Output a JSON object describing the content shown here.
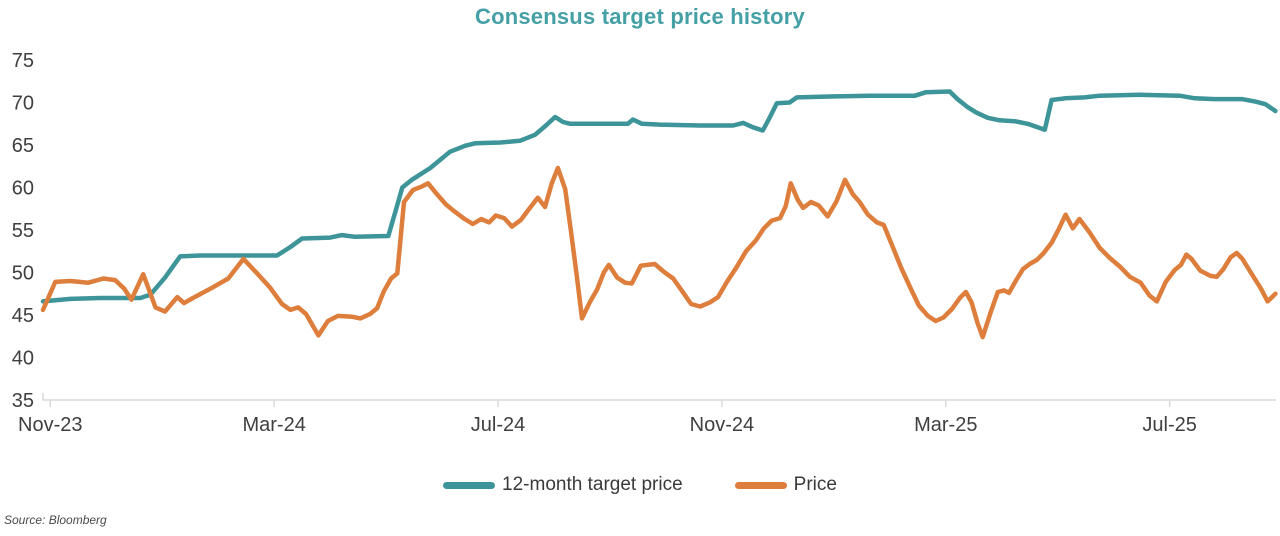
{
  "title": "Consensus target price history",
  "source": "Source: Bloomberg",
  "colors": {
    "title": "#45a0a6",
    "target": "#3d9499",
    "price": "#dd7e3c",
    "axis_text": "#3f3f3f",
    "axis_line": "#d9d9d9"
  },
  "chart_data": {
    "type": "line",
    "title": "Consensus target price history",
    "xlabel": "",
    "ylabel": "",
    "x_unit": "months since Nov-2023",
    "x_range": [
      -0.13,
      21.9
    ],
    "y_range": [
      35,
      75
    ],
    "y_tick_step": 5,
    "grid": false,
    "legend_position": "bottom",
    "x_ticks": [
      {
        "label": "Nov-23",
        "m": 0
      },
      {
        "label": "Mar-24",
        "m": 4
      },
      {
        "label": "Jul-24",
        "m": 8
      },
      {
        "label": "Nov-24",
        "m": 12
      },
      {
        "label": "Mar-25",
        "m": 16
      },
      {
        "label": "Jul-25",
        "m": 20
      }
    ],
    "series": [
      {
        "name": "12-month target price",
        "color": "#3d9499",
        "points": [
          [
            -0.13,
            46.6
          ],
          [
            0.36,
            46.9
          ],
          [
            0.89,
            47.0
          ],
          [
            1.61,
            47.0
          ],
          [
            1.79,
            47.4
          ],
          [
            2.05,
            49.4
          ],
          [
            2.32,
            51.9
          ],
          [
            2.68,
            52.0
          ],
          [
            4.05,
            52.0
          ],
          [
            4.29,
            53.0
          ],
          [
            4.5,
            54.0
          ],
          [
            5.0,
            54.1
          ],
          [
            5.21,
            54.4
          ],
          [
            5.45,
            54.2
          ],
          [
            6.04,
            54.3
          ],
          [
            6.16,
            57.0
          ],
          [
            6.29,
            60.0
          ],
          [
            6.46,
            60.9
          ],
          [
            6.79,
            62.3
          ],
          [
            7.14,
            64.2
          ],
          [
            7.41,
            64.9
          ],
          [
            7.59,
            65.2
          ],
          [
            8.04,
            65.3
          ],
          [
            8.39,
            65.5
          ],
          [
            8.66,
            66.2
          ],
          [
            8.84,
            67.2
          ],
          [
            9.02,
            68.3
          ],
          [
            9.16,
            67.7
          ],
          [
            9.29,
            67.5
          ],
          [
            9.82,
            67.5
          ],
          [
            10.32,
            67.5
          ],
          [
            10.41,
            68.0
          ],
          [
            10.57,
            67.5
          ],
          [
            10.89,
            67.4
          ],
          [
            11.61,
            67.3
          ],
          [
            12.2,
            67.3
          ],
          [
            12.38,
            67.6
          ],
          [
            12.55,
            67.1
          ],
          [
            12.73,
            66.7
          ],
          [
            12.86,
            68.3
          ],
          [
            12.98,
            69.9
          ],
          [
            13.21,
            70.0
          ],
          [
            13.34,
            70.6
          ],
          [
            13.93,
            70.7
          ],
          [
            14.64,
            70.8
          ],
          [
            15.45,
            70.8
          ],
          [
            15.64,
            71.2
          ],
          [
            16.07,
            71.3
          ],
          [
            16.21,
            70.4
          ],
          [
            16.38,
            69.5
          ],
          [
            16.55,
            68.8
          ],
          [
            16.75,
            68.2
          ],
          [
            16.96,
            67.9
          ],
          [
            17.23,
            67.8
          ],
          [
            17.46,
            67.5
          ],
          [
            17.64,
            67.1
          ],
          [
            17.77,
            66.8
          ],
          [
            17.89,
            70.3
          ],
          [
            18.13,
            70.5
          ],
          [
            18.48,
            70.6
          ],
          [
            18.75,
            70.8
          ],
          [
            19.46,
            70.9
          ],
          [
            20.18,
            70.8
          ],
          [
            20.45,
            70.5
          ],
          [
            20.8,
            70.4
          ],
          [
            21.29,
            70.4
          ],
          [
            21.54,
            70.1
          ],
          [
            21.71,
            69.8
          ],
          [
            21.89,
            69.0
          ]
        ]
      },
      {
        "name": "Price",
        "color": "#dd7e3c",
        "points": [
          [
            -0.13,
            45.6
          ],
          [
            0.09,
            48.9
          ],
          [
            0.36,
            49.0
          ],
          [
            0.68,
            48.8
          ],
          [
            0.95,
            49.3
          ],
          [
            1.16,
            49.1
          ],
          [
            1.32,
            48.1
          ],
          [
            1.45,
            46.8
          ],
          [
            1.66,
            49.8
          ],
          [
            1.88,
            45.9
          ],
          [
            2.05,
            45.4
          ],
          [
            2.27,
            47.1
          ],
          [
            2.39,
            46.4
          ],
          [
            2.55,
            47.0
          ],
          [
            2.89,
            48.2
          ],
          [
            3.18,
            49.3
          ],
          [
            3.45,
            51.6
          ],
          [
            3.71,
            49.8
          ],
          [
            3.93,
            48.2
          ],
          [
            4.14,
            46.3
          ],
          [
            4.29,
            45.6
          ],
          [
            4.43,
            45.9
          ],
          [
            4.57,
            45.1
          ],
          [
            4.79,
            42.6
          ],
          [
            4.96,
            44.3
          ],
          [
            5.14,
            44.9
          ],
          [
            5.39,
            44.8
          ],
          [
            5.54,
            44.6
          ],
          [
            5.71,
            45.1
          ],
          [
            5.84,
            45.8
          ],
          [
            5.96,
            47.8
          ],
          [
            6.09,
            49.3
          ],
          [
            6.2,
            49.9
          ],
          [
            6.32,
            58.3
          ],
          [
            6.48,
            59.7
          ],
          [
            6.63,
            60.1
          ],
          [
            6.75,
            60.5
          ],
          [
            6.91,
            59.2
          ],
          [
            7.07,
            58.0
          ],
          [
            7.2,
            57.3
          ],
          [
            7.38,
            56.4
          ],
          [
            7.55,
            55.7
          ],
          [
            7.7,
            56.3
          ],
          [
            7.84,
            55.9
          ],
          [
            7.96,
            56.7
          ],
          [
            8.11,
            56.4
          ],
          [
            8.25,
            55.4
          ],
          [
            8.41,
            56.2
          ],
          [
            8.57,
            57.6
          ],
          [
            8.71,
            58.8
          ],
          [
            8.84,
            57.7
          ],
          [
            8.96,
            60.5
          ],
          [
            9.07,
            62.3
          ],
          [
            9.2,
            59.8
          ],
          [
            9.3,
            55.0
          ],
          [
            9.41,
            49.5
          ],
          [
            9.5,
            44.6
          ],
          [
            9.64,
            46.5
          ],
          [
            9.77,
            48.0
          ],
          [
            9.89,
            50.0
          ],
          [
            9.98,
            50.9
          ],
          [
            10.13,
            49.4
          ],
          [
            10.27,
            48.8
          ],
          [
            10.39,
            48.7
          ],
          [
            10.55,
            50.8
          ],
          [
            10.8,
            51.0
          ],
          [
            10.98,
            50.0
          ],
          [
            11.13,
            49.3
          ],
          [
            11.29,
            47.8
          ],
          [
            11.45,
            46.3
          ],
          [
            11.61,
            46.0
          ],
          [
            11.79,
            46.5
          ],
          [
            11.93,
            47.1
          ],
          [
            12.09,
            48.9
          ],
          [
            12.25,
            50.5
          ],
          [
            12.43,
            52.5
          ],
          [
            12.61,
            53.8
          ],
          [
            12.75,
            55.2
          ],
          [
            12.89,
            56.1
          ],
          [
            13.04,
            56.4
          ],
          [
            13.14,
            57.8
          ],
          [
            13.23,
            60.5
          ],
          [
            13.36,
            58.5
          ],
          [
            13.45,
            57.6
          ],
          [
            13.59,
            58.3
          ],
          [
            13.73,
            57.9
          ],
          [
            13.89,
            56.6
          ],
          [
            14.05,
            58.4
          ],
          [
            14.2,
            60.9
          ],
          [
            14.34,
            59.2
          ],
          [
            14.46,
            58.3
          ],
          [
            14.61,
            56.8
          ],
          [
            14.77,
            55.9
          ],
          [
            14.89,
            55.6
          ],
          [
            15.04,
            53.2
          ],
          [
            15.2,
            50.6
          ],
          [
            15.36,
            48.3
          ],
          [
            15.52,
            46.1
          ],
          [
            15.68,
            44.9
          ],
          [
            15.82,
            44.3
          ],
          [
            15.96,
            44.7
          ],
          [
            16.11,
            45.7
          ],
          [
            16.25,
            47.0
          ],
          [
            16.36,
            47.7
          ],
          [
            16.46,
            46.5
          ],
          [
            16.57,
            44.0
          ],
          [
            16.66,
            42.4
          ],
          [
            16.8,
            45.3
          ],
          [
            16.93,
            47.7
          ],
          [
            17.04,
            47.9
          ],
          [
            17.13,
            47.6
          ],
          [
            17.25,
            49.0
          ],
          [
            17.38,
            50.4
          ],
          [
            17.5,
            51.0
          ],
          [
            17.63,
            51.5
          ],
          [
            17.75,
            52.3
          ],
          [
            17.89,
            53.5
          ],
          [
            18.02,
            55.1
          ],
          [
            18.14,
            56.8
          ],
          [
            18.27,
            55.2
          ],
          [
            18.39,
            56.3
          ],
          [
            18.57,
            54.7
          ],
          [
            18.75,
            52.9
          ],
          [
            18.93,
            51.7
          ],
          [
            19.11,
            50.7
          ],
          [
            19.29,
            49.5
          ],
          [
            19.48,
            48.8
          ],
          [
            19.64,
            47.3
          ],
          [
            19.77,
            46.6
          ],
          [
            19.93,
            48.9
          ],
          [
            20.09,
            50.3
          ],
          [
            20.2,
            50.9
          ],
          [
            20.3,
            52.1
          ],
          [
            20.39,
            51.6
          ],
          [
            20.55,
            50.2
          ],
          [
            20.73,
            49.6
          ],
          [
            20.84,
            49.5
          ],
          [
            20.96,
            50.4
          ],
          [
            21.09,
            51.8
          ],
          [
            21.2,
            52.3
          ],
          [
            21.3,
            51.6
          ],
          [
            21.45,
            50.0
          ],
          [
            21.63,
            48.1
          ],
          [
            21.75,
            46.6
          ],
          [
            21.89,
            47.5
          ]
        ]
      }
    ]
  }
}
